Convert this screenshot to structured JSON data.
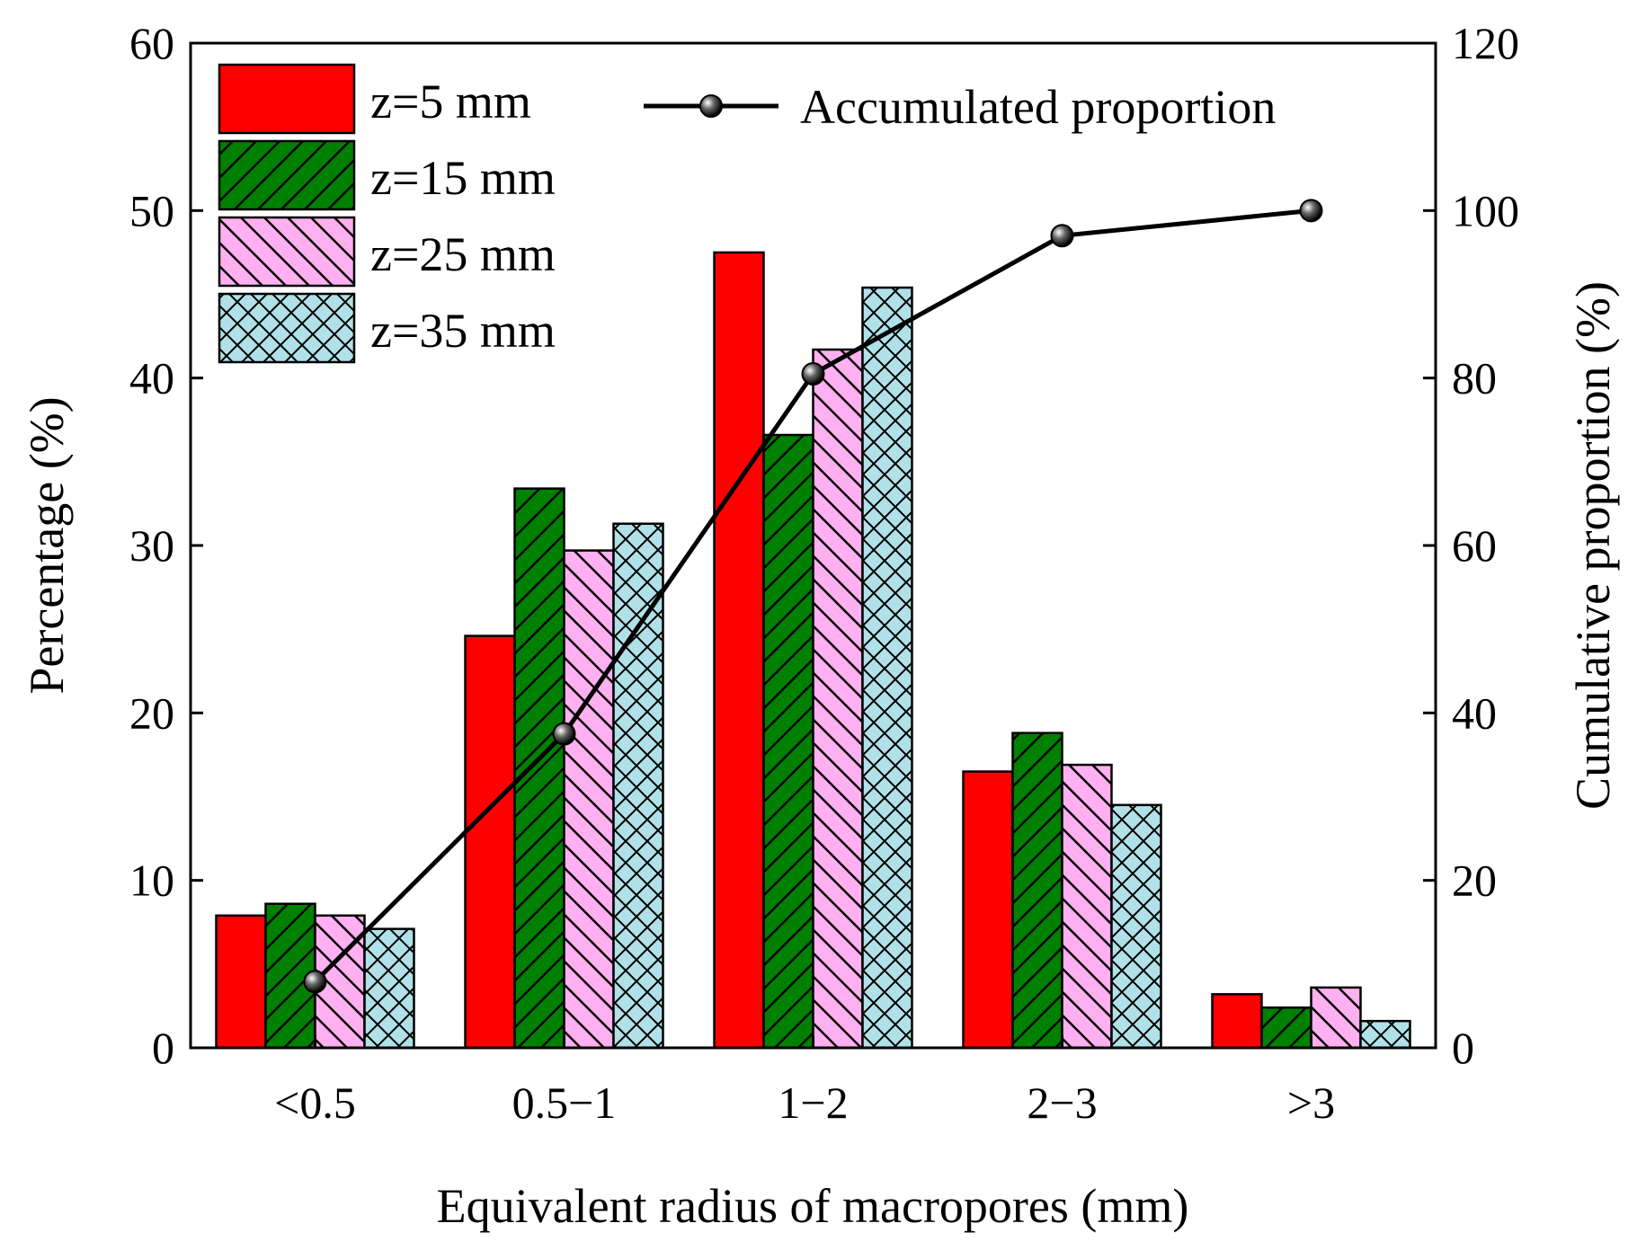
{
  "chart_data": {
    "type": "bar",
    "xlabel": "Equivalent radius of macropores (mm)",
    "ylabel": "Percentage  (%)",
    "y2label": "Cumulative proportion  (%)",
    "categories": [
      "<0.5",
      "0.5−1",
      "1−2",
      "2−3",
      ">3"
    ],
    "ylim": [
      0,
      60
    ],
    "y2lim": [
      0,
      120
    ],
    "yticks": [
      "0",
      "10",
      "20",
      "30",
      "40",
      "50",
      "60"
    ],
    "y2ticks": [
      "0",
      "20",
      "40",
      "60",
      "80",
      "100",
      "120"
    ],
    "series": [
      {
        "name": "z=5 mm",
        "values": [
          7.9,
          24.6,
          47.5,
          16.5,
          3.2
        ],
        "color": "#ff0000",
        "pattern": "solid"
      },
      {
        "name": "z=15 mm",
        "values": [
          8.6,
          33.4,
          36.6,
          18.8,
          2.4
        ],
        "color": "#008000",
        "pattern": "diag-up"
      },
      {
        "name": "z=25 mm",
        "values": [
          7.9,
          29.7,
          41.7,
          16.9,
          3.6
        ],
        "color": "#ffb0f0",
        "pattern": "diag-down"
      },
      {
        "name": "z=35 mm",
        "values": [
          7.1,
          31.3,
          45.4,
          14.5,
          1.6
        ],
        "color": "#b0e0e8",
        "pattern": "cross"
      }
    ],
    "line_series": {
      "name": "Accumulated proportion",
      "axis": "right",
      "values": [
        7.9,
        37.5,
        80.5,
        97.0,
        100.0
      ]
    },
    "legend_position": "top-left"
  }
}
